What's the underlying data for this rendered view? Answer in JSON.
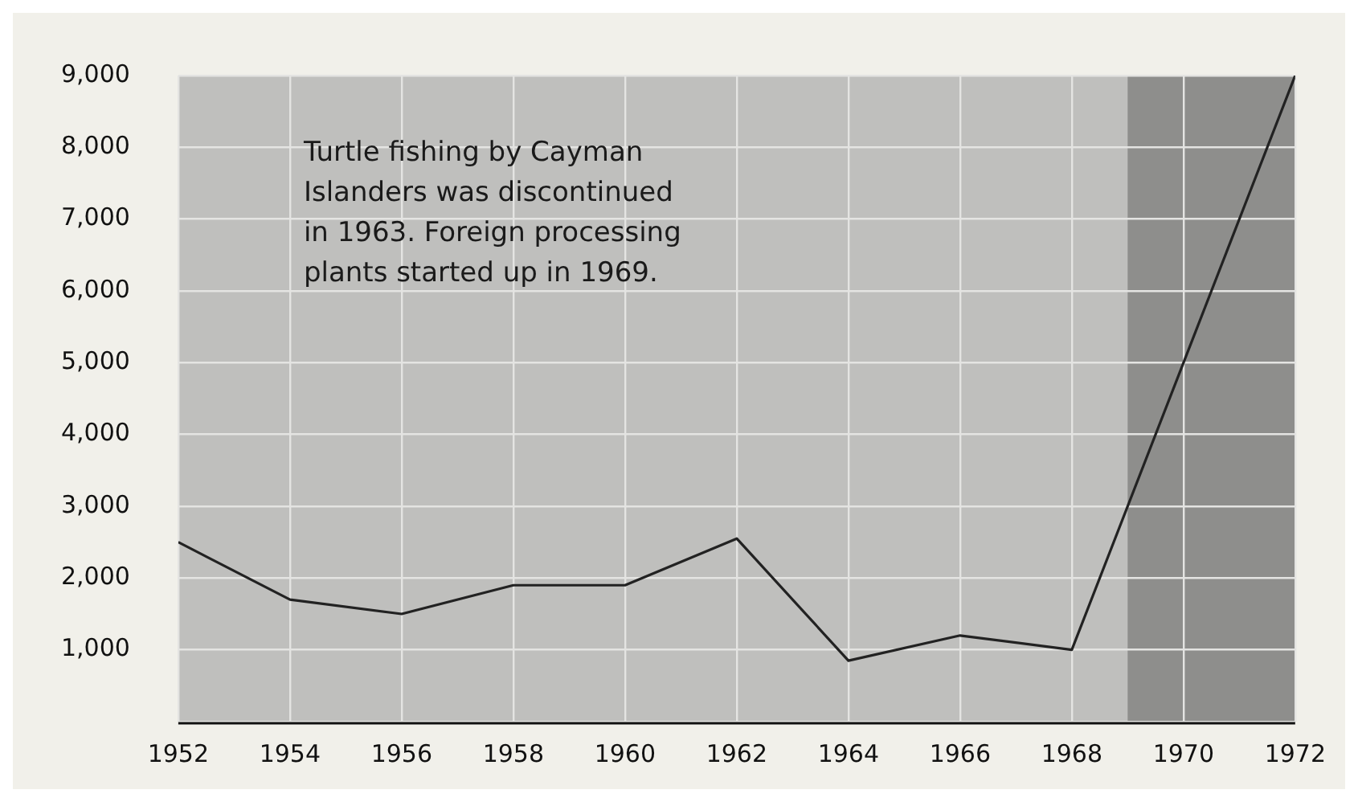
{
  "chart_data": {
    "type": "line",
    "x": [
      1952,
      1954,
      1956,
      1958,
      1960,
      1962,
      1964,
      1966,
      1968,
      1970,
      1972
    ],
    "series": [
      {
        "color": "#222222",
        "values": [
          2500,
          1700,
          1500,
          1900,
          1900,
          2550,
          850,
          1200,
          1000,
          5000,
          9000
        ]
      }
    ],
    "xlim": [
      1952,
      1972
    ],
    "xticks": [
      1952,
      1954,
      1956,
      1958,
      1960,
      1962,
      1964,
      1966,
      1968,
      1970,
      1972
    ],
    "ylim": [
      0,
      9000
    ],
    "yticks": [
      {
        "value": 0,
        "label": null
      },
      {
        "value": 1000,
        "label": "1,000"
      },
      {
        "value": 2000,
        "label": "2,000"
      },
      {
        "value": 3000,
        "label": "3,000"
      },
      {
        "value": 4000,
        "label": "4,000"
      },
      {
        "value": 5000,
        "label": "5,000"
      },
      {
        "value": 6000,
        "label": "6,000"
      },
      {
        "value": 7000,
        "label": "7,000"
      },
      {
        "value": 8000,
        "label": "8,000"
      },
      {
        "value": 9000,
        "label": "9,000"
      }
    ],
    "bands": [
      {
        "axis": "x",
        "from": 1969,
        "to": 1972,
        "color": "#8e8e8c"
      }
    ],
    "annotations": [
      "Turtle fishing by Cayman Islanders was discontinued in 1963. Foreign processing plants started up in 1969."
    ],
    "grid": true,
    "legend": false,
    "marker": "none",
    "line_style": "solid"
  }
}
